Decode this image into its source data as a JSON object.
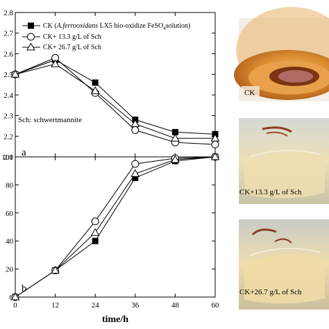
{
  "chart_data": [
    {
      "panel": "a",
      "type": "line",
      "xlabel": "time/h",
      "ylabel": "",
      "x": [
        0,
        12,
        24,
        36,
        48,
        60
      ],
      "xlim": [
        0,
        60
      ],
      "ylim": [
        2.1,
        2.8
      ],
      "yticks": [
        "2.1",
        "2.2",
        "2.3",
        "2.4",
        "2.5",
        "2.6",
        "2.7",
        "2.8"
      ],
      "annotation": "Sch: schwertmannite",
      "legend_position": "top-left",
      "series": [
        {
          "name_parts": [
            "CK (",
            "A.ferrooxidans",
            " LX5 bio-oxidize FeSO",
            "4",
            "solution)"
          ],
          "marker": "filled-square",
          "values": [
            2.5,
            2.57,
            2.46,
            2.28,
            2.22,
            2.21
          ]
        },
        {
          "name_parts": [
            "CK+ 13.3 g/L of  Sch"
          ],
          "marker": "open-circle",
          "values": [
            2.5,
            2.58,
            2.41,
            2.23,
            2.17,
            2.16
          ]
        },
        {
          "name_parts": [
            "CK+ 26.7 g/L of  Sch"
          ],
          "marker": "open-triangle",
          "values": [
            2.5,
            2.55,
            2.42,
            2.26,
            2.19,
            2.19
          ]
        }
      ]
    },
    {
      "panel": "b",
      "type": "line",
      "xlabel": "time/h",
      "ylabel": "",
      "x": [
        0,
        12,
        24,
        36,
        48,
        60
      ],
      "xticks": [
        "0",
        "12",
        "24",
        "36",
        "48",
        "60"
      ],
      "xlim": [
        0,
        60
      ],
      "ylim": [
        0,
        100
      ],
      "yticks": [
        "0",
        "20",
        "40",
        "60",
        "80",
        "100"
      ],
      "series": [
        {
          "marker": "filled-square",
          "values": [
            0,
            19,
            40,
            85,
            97,
            100
          ]
        },
        {
          "marker": "open-circle",
          "values": [
            0,
            19,
            54,
            95,
            99,
            100
          ]
        },
        {
          "marker": "open-triangle",
          "values": [
            0,
            19,
            46,
            88,
            98,
            100
          ]
        }
      ]
    }
  ],
  "photos": [
    {
      "label": "CK",
      "color": "#c8721e"
    },
    {
      "label": "CK+13.3 g/L of Sch",
      "color": "#e8d9b0"
    },
    {
      "label": "CK+26.7 g/L of Sch",
      "color": "#e6d5a8"
    }
  ]
}
